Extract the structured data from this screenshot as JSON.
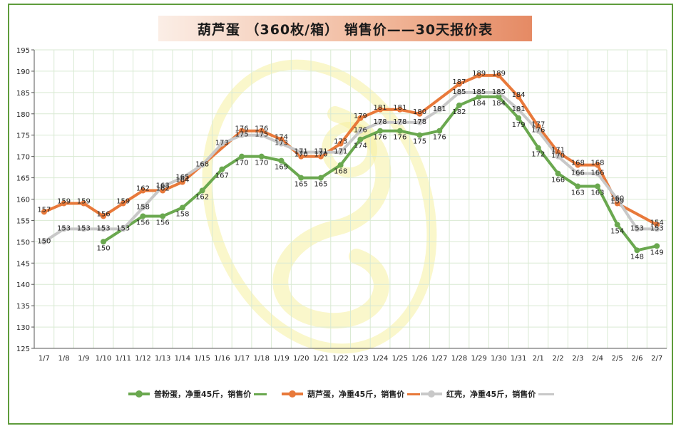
{
  "title": "葫芦蛋 （360枚/箱） 销售价——30天报价表",
  "colors": {
    "green": "#6aa84f",
    "orange": "#e8793a",
    "gray": "#c8c8c8",
    "grid": "#d9ead3",
    "axis": "#555555",
    "watermark": "#f5f0a0"
  },
  "chart_data": {
    "type": "line",
    "categories": [
      "1/7",
      "1/8",
      "1/9",
      "1/10",
      "1/11",
      "1/12",
      "1/13",
      "1/14",
      "1/15",
      "1/16",
      "1/17",
      "1/18",
      "1/19",
      "1/20",
      "1/21",
      "1/22",
      "1/23",
      "1/24",
      "1/25",
      "1/26",
      "1/27",
      "1/28",
      "1/29",
      "1/30",
      "1/31",
      "2/1",
      "2/2",
      "2/3",
      "2/4",
      "2/5",
      "2/6",
      "2/7"
    ],
    "ylim": [
      125,
      195
    ],
    "ystep": 5,
    "grid": true,
    "legend_position": "bottom",
    "series": [
      {
        "name": "普粉蛋，净重45斤，销售价",
        "color": "#6aa84f",
        "values": [
          null,
          null,
          null,
          150,
          null,
          156,
          156,
          158,
          162,
          167,
          170,
          170,
          169,
          165,
          165,
          168,
          174,
          176,
          176,
          175,
          176,
          182,
          184,
          184,
          179,
          172,
          166,
          163,
          163,
          154,
          148,
          149
        ],
        "labels": [
          null,
          null,
          null,
          "150",
          null,
          "156",
          "156",
          "158",
          "162",
          "167",
          "170",
          "170",
          "169",
          "165",
          "165",
          "168",
          "174",
          "176",
          "176",
          "175",
          "176",
          "182",
          "184",
          "184",
          "179",
          "172",
          "166",
          "163",
          "163",
          "154",
          "148",
          "149"
        ]
      },
      {
        "name": "葫芦蛋，净重45斤，销售价",
        "color": "#e8793a",
        "values": [
          157,
          159,
          159,
          156,
          159,
          162,
          162,
          164,
          null,
          null,
          176,
          176,
          174,
          170,
          170,
          173,
          179,
          181,
          181,
          180,
          null,
          187,
          189,
          189,
          184,
          177,
          171,
          168,
          168,
          159,
          null,
          154
        ],
        "labels": [
          "157",
          "159",
          "159",
          "156",
          "159",
          "162",
          "162",
          "164",
          null,
          null,
          "176",
          "176",
          "174",
          "170",
          "170",
          "173",
          "179",
          "181",
          "181",
          "180",
          null,
          "187",
          "189",
          "189",
          "184",
          "177",
          "171",
          "168",
          "168",
          "159",
          null,
          "154"
        ]
      },
      {
        "name": "红壳，净重45斤，销售价",
        "color": "#c8c8c8",
        "values": [
          150,
          153,
          153,
          153,
          153,
          158,
          163,
          165,
          168,
          173,
          175,
          175,
          173,
          171,
          171,
          171,
          176,
          178,
          178,
          178,
          181,
          185,
          185,
          185,
          181,
          176,
          170,
          166,
          166,
          160,
          153,
          153
        ],
        "labels": [
          "150",
          "153",
          "153",
          "153",
          "153",
          "158",
          "163",
          "165",
          "168",
          "173",
          "175",
          "175",
          "173",
          "171",
          "171",
          "171",
          "176",
          "178",
          "178",
          "178",
          "181",
          "185",
          "185",
          "185",
          "181",
          "176",
          "170",
          "166",
          "166",
          "160",
          "153",
          "153"
        ]
      }
    ]
  }
}
